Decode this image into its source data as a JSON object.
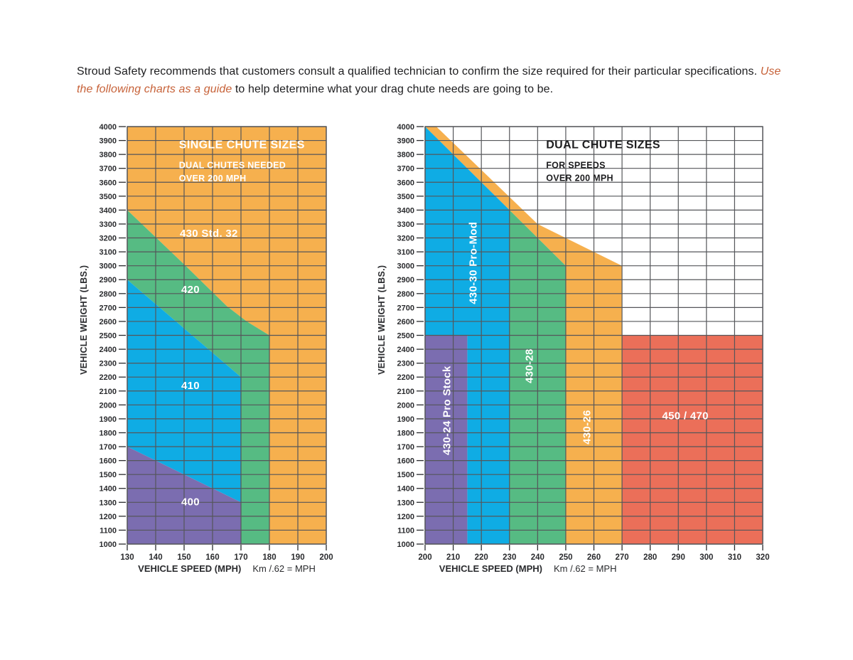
{
  "intro": {
    "text_before": "Stroud Safety recommends that customers consult a qualified technician to confirm the size required for their particular specifications. ",
    "emphasis": "Use the following charts as a guide",
    "text_after": " to help determine what your drag chute needs are going to be."
  },
  "colors": {
    "accent_italic": "#C76239",
    "orange": "#F6B04E",
    "green": "#56BB83",
    "blue": "#0FACE4",
    "purple": "#7B6DB0",
    "red": "#EB6F59",
    "grid": "#55565A",
    "axis_text": "#2A2B2E",
    "label_white": "#FFFFFF",
    "title_black": "#1D1D1F"
  },
  "chart_data": [
    {
      "type": "area",
      "id": "single-chute-sizes",
      "title": "SINGLE CHUTE SIZES",
      "title_color": "#FFFFFF",
      "title_pos": {
        "x": 148.2,
        "y": 3845
      },
      "subtitle_lines": [
        "DUAL CHUTES NEEDED",
        "OVER 200 MPH"
      ],
      "subtitle_pos": [
        {
          "x": 148.2,
          "y": 3700
        },
        {
          "x": 148.2,
          "y": 3607
        }
      ],
      "xlabel": "VEHICLE SPEED (MPH)",
      "xnote": "Km /.62 = MPH",
      "xlabel_anchor": {
        "x": 165,
        "align": "middle"
      },
      "ylabel": "VEHICLE WEIGHT (LBS.)",
      "xlim": [
        130,
        200
      ],
      "x_tick_step": 10,
      "ylim": [
        1000,
        4000
      ],
      "y_tick_step": 100,
      "grid": true,
      "regions": [
        {
          "name": "430 Std. 32",
          "color_key": "orange",
          "points": [
            [
              130,
              4000
            ],
            [
              200,
              4000
            ],
            [
              200,
              1000
            ],
            [
              180,
              1000
            ],
            [
              180,
              2500
            ],
            [
              172,
              2600
            ],
            [
              165,
              2710
            ],
            [
              150,
              3010
            ],
            [
              130,
              3400
            ]
          ]
        },
        {
          "name": "420",
          "color_key": "green",
          "points": [
            [
              130,
              3400
            ],
            [
              150,
              3010
            ],
            [
              165,
              2710
            ],
            [
              172,
              2600
            ],
            [
              180,
              2500
            ],
            [
              180,
              1000
            ],
            [
              170,
              1000
            ],
            [
              170,
              2200
            ],
            [
              150,
              2550
            ],
            [
              130,
              2900
            ]
          ]
        },
        {
          "name": "410",
          "color_key": "blue",
          "points": [
            [
              130,
              2900
            ],
            [
              150,
              2550
            ],
            [
              170,
              2200
            ],
            [
              170,
              1300
            ],
            [
              130,
              1700
            ]
          ]
        },
        {
          "name": "400",
          "color_key": "purple",
          "points": [
            [
              130,
              1700
            ],
            [
              170,
              1300
            ],
            [
              170,
              1000
            ],
            [
              130,
              1000
            ]
          ]
        }
      ],
      "region_labels": [
        {
          "text": "430 Std. 32",
          "x": 148.5,
          "y": 3235,
          "rotate": 0,
          "anchor": "start"
        },
        {
          "text": "420",
          "x": 149,
          "y": 2830,
          "rotate": 0,
          "anchor": "start"
        },
        {
          "text": "410",
          "x": 149,
          "y": 2140,
          "rotate": 0,
          "anchor": "start"
        },
        {
          "text": "400",
          "x": 149,
          "y": 1305,
          "rotate": 0,
          "anchor": "start"
        }
      ]
    },
    {
      "type": "area",
      "id": "dual-chute-sizes",
      "title": "DUAL CHUTE SIZES",
      "title_color": "#1D1D1F",
      "title_pos": {
        "x": 243,
        "y": 3845
      },
      "subtitle_lines": [
        "FOR SPEEDS",
        "OVER 200 MPH"
      ],
      "subtitle_pos": [
        {
          "x": 243,
          "y": 3700
        },
        {
          "x": 243,
          "y": 3610
        }
      ],
      "xlabel": "VEHICLE SPEED (MPH)",
      "xnote": "Km /.62 = MPH",
      "xlabel_anchor": {
        "x": 205,
        "align": "start"
      },
      "ylabel": "VEHICLE WEIGHT (LBS.)",
      "xlim": [
        200,
        320
      ],
      "x_tick_step": 10,
      "ylim": [
        1000,
        4000
      ],
      "y_tick_step": 100,
      "grid": true,
      "regions": [
        {
          "name": "430-26",
          "color_key": "orange",
          "points": [
            [
              200,
              4000
            ],
            [
              204,
              4000
            ],
            [
              240,
              3300
            ],
            [
              270,
              3000
            ],
            [
              270,
              1000
            ],
            [
              250,
              1000
            ],
            [
              250,
              3000
            ],
            [
              230,
              3400
            ]
          ]
        },
        {
          "name": "430-30 Pro-Mod",
          "color_key": "blue",
          "points": [
            [
              200,
              4000
            ],
            [
              230,
              3400
            ],
            [
              230,
              1000
            ],
            [
              215,
              1000
            ],
            [
              215,
              2500
            ],
            [
              200,
              2500
            ]
          ]
        },
        {
          "name": "430-24 Pro Stock",
          "color_key": "purple",
          "points": [
            [
              200,
              2500
            ],
            [
              215,
              2500
            ],
            [
              215,
              1000
            ],
            [
              200,
              1000
            ]
          ]
        },
        {
          "name": "430-28",
          "color_key": "green",
          "points": [
            [
              230,
              3400
            ],
            [
              250,
              3000
            ],
            [
              250,
              1000
            ],
            [
              230,
              1000
            ]
          ]
        },
        {
          "name": "450 / 470",
          "color_key": "red",
          "points": [
            [
              270,
              2500
            ],
            [
              320,
              2500
            ],
            [
              320,
              1000
            ],
            [
              270,
              1000
            ]
          ]
        }
      ],
      "region_labels": [
        {
          "text": "430-30 Pro-Mod",
          "x": 217,
          "y": 3020,
          "rotate": -90,
          "anchor": "middle"
        },
        {
          "text": "430-24 Pro Stock",
          "x": 207.6,
          "y": 1960,
          "rotate": -90,
          "anchor": "middle"
        },
        {
          "text": "430-28",
          "x": 237,
          "y": 2280,
          "rotate": -90,
          "anchor": "middle"
        },
        {
          "text": "430-26",
          "x": 257.4,
          "y": 1840,
          "rotate": -90,
          "anchor": "middle"
        },
        {
          "text": "450 / 470",
          "x": 292.5,
          "y": 1925,
          "rotate": 0,
          "anchor": "middle"
        }
      ]
    }
  ]
}
